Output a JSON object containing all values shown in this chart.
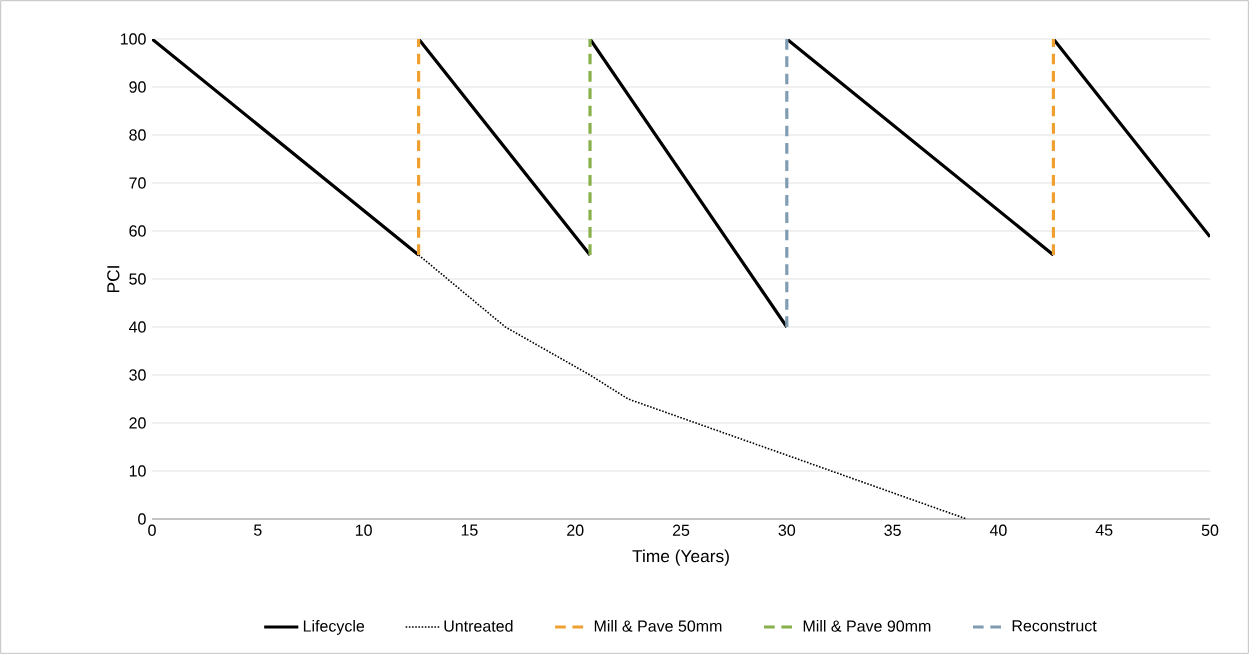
{
  "chart_data": {
    "type": "line",
    "xlabel": "Time (Years)",
    "ylabel": "PCI",
    "xlim": [
      0,
      50
    ],
    "ylim": [
      0,
      100
    ],
    "xticks": [
      0,
      5,
      10,
      15,
      20,
      25,
      30,
      35,
      40,
      45,
      50
    ],
    "yticks": [
      0,
      10,
      20,
      30,
      40,
      50,
      60,
      70,
      80,
      90,
      100
    ],
    "grid": "y",
    "legend": "bottom",
    "marker": "none",
    "series": [
      {
        "name": "Lifecycle",
        "color": "#000000",
        "line_style": "solid",
        "x": [
          0,
          12.6,
          null,
          12.6,
          20.7,
          null,
          20.7,
          30,
          null,
          30,
          42.6,
          null,
          42.6,
          50
        ],
        "values": [
          100,
          55,
          null,
          100,
          55,
          null,
          100,
          40,
          null,
          100,
          55,
          null,
          100,
          58.8
        ]
      },
      {
        "name": "Untreated",
        "color": "#000000",
        "line_style": "dotted",
        "x": [
          12.6,
          16.7,
          20.7,
          22.5,
          30,
          38.5
        ],
        "values": [
          55,
          40,
          30,
          25,
          13.3,
          0
        ]
      },
      {
        "name": "Mill & Pave 50mm",
        "color": "#f0a030",
        "line_style": "dashed",
        "x": [
          12.6,
          12.6,
          null,
          42.6,
          42.6
        ],
        "values": [
          55,
          100,
          null,
          55,
          100
        ]
      },
      {
        "name": "Mill & Pave 90mm",
        "color": "#88b04b",
        "line_style": "dashed",
        "x": [
          20.7,
          20.7
        ],
        "values": [
          55,
          100
        ]
      },
      {
        "name": "Reconstruct",
        "color": "#7f9cb2",
        "line_style": "dashed",
        "x": [
          30,
          30
        ],
        "values": [
          40,
          100
        ]
      }
    ]
  }
}
